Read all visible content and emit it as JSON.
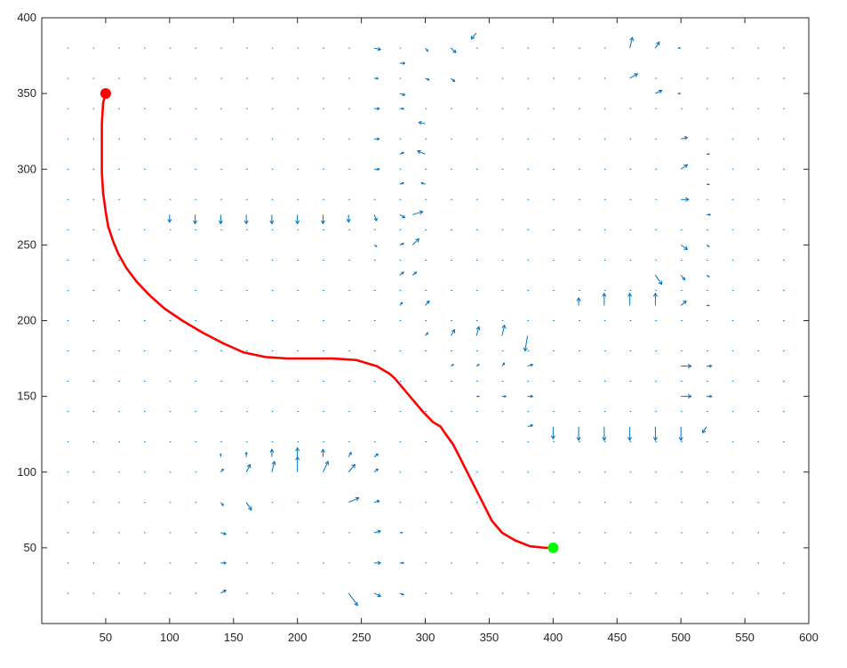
{
  "chart_data": {
    "type": "quiver",
    "title": "",
    "xlabel": "",
    "ylabel": "",
    "xlim": [
      0,
      600
    ],
    "ylim": [
      0,
      400
    ],
    "xticks": [
      50,
      100,
      150,
      200,
      250,
      300,
      350,
      400,
      450,
      500,
      550,
      600
    ],
    "yticks": [
      50,
      100,
      150,
      200,
      250,
      300,
      350,
      400
    ],
    "grid": false,
    "box": true,
    "vector_field": {
      "color": "#0072BD",
      "grid_x_start": 20,
      "grid_x_step": 20,
      "grid_y_start": 20,
      "grid_y_step": 20,
      "vectors": [
        [
          300,
          380,
          2,
          -2
        ],
        [
          320,
          380,
          4,
          -3
        ],
        [
          340,
          390,
          -4,
          -4
        ],
        [
          460,
          380,
          2,
          7
        ],
        [
          480,
          380,
          3,
          4
        ],
        [
          500,
          380,
          -2,
          0
        ],
        [
          260,
          380,
          5,
          -1
        ],
        [
          280,
          370,
          4,
          0
        ],
        [
          300,
          360,
          3,
          -1
        ],
        [
          320,
          360,
          3,
          -2
        ],
        [
          260,
          360,
          3,
          0
        ],
        [
          280,
          350,
          4,
          -1
        ],
        [
          460,
          360,
          6,
          3
        ],
        [
          480,
          350,
          5,
          2
        ],
        [
          500,
          350,
          -2,
          0
        ],
        [
          260,
          340,
          4,
          0
        ],
        [
          280,
          340,
          3,
          0
        ],
        [
          300,
          330,
          -5,
          1
        ],
        [
          260,
          320,
          4,
          0
        ],
        [
          280,
          310,
          3,
          1
        ],
        [
          300,
          310,
          -6,
          2
        ],
        [
          260,
          300,
          4,
          0
        ],
        [
          280,
          290,
          3,
          1
        ],
        [
          300,
          290,
          -3,
          1
        ],
        [
          500,
          320,
          5,
          1
        ],
        [
          520,
          310,
          2,
          0
        ],
        [
          500,
          300,
          5,
          3
        ],
        [
          520,
          290,
          2,
          0
        ],
        [
          500,
          280,
          6,
          0
        ],
        [
          520,
          270,
          3,
          0
        ],
        [
          100,
          270,
          0,
          -5
        ],
        [
          120,
          270,
          0,
          -6
        ],
        [
          140,
          270,
          0,
          -6
        ],
        [
          160,
          270,
          0,
          -6
        ],
        [
          180,
          270,
          0,
          -6
        ],
        [
          200,
          270,
          0,
          -6
        ],
        [
          220,
          270,
          0,
          -6
        ],
        [
          240,
          270,
          0,
          -5
        ],
        [
          260,
          270,
          2,
          -4
        ],
        [
          280,
          270,
          4,
          -2
        ],
        [
          290,
          270,
          8,
          2
        ],
        [
          80,
          250,
          0,
          0
        ],
        [
          100,
          250,
          0,
          0
        ],
        [
          120,
          250,
          0,
          0
        ],
        [
          140,
          250,
          0,
          0
        ],
        [
          160,
          250,
          0,
          0
        ],
        [
          180,
          250,
          0,
          0
        ],
        [
          200,
          250,
          0,
          0
        ],
        [
          220,
          250,
          0,
          0
        ],
        [
          240,
          250,
          0,
          0
        ],
        [
          260,
          250,
          2,
          -1
        ],
        [
          280,
          250,
          3,
          1
        ],
        [
          290,
          250,
          5,
          4
        ],
        [
          500,
          250,
          5,
          -3
        ],
        [
          520,
          250,
          2,
          -1
        ],
        [
          280,
          230,
          3,
          2
        ],
        [
          290,
          230,
          3,
          2
        ],
        [
          480,
          230,
          5,
          -6
        ],
        [
          500,
          230,
          3,
          -3
        ],
        [
          520,
          230,
          2,
          -1
        ],
        [
          280,
          210,
          2,
          2
        ],
        [
          300,
          210,
          3,
          3
        ],
        [
          420,
          210,
          0,
          5
        ],
        [
          440,
          210,
          0,
          8
        ],
        [
          460,
          210,
          0,
          8
        ],
        [
          480,
          210,
          0,
          8
        ],
        [
          500,
          210,
          4,
          3
        ],
        [
          520,
          210,
          2,
          0
        ],
        [
          300,
          190,
          2,
          2
        ],
        [
          320,
          190,
          3,
          4
        ],
        [
          340,
          190,
          2,
          6
        ],
        [
          360,
          190,
          2,
          7
        ],
        [
          380,
          190,
          -2,
          -10
        ],
        [
          320,
          170,
          2,
          1
        ],
        [
          340,
          170,
          2,
          1
        ],
        [
          360,
          170,
          2,
          2
        ],
        [
          380,
          170,
          4,
          1
        ],
        [
          500,
          170,
          8,
          0
        ],
        [
          520,
          170,
          4,
          0
        ],
        [
          340,
          150,
          2,
          0
        ],
        [
          360,
          150,
          3,
          0
        ],
        [
          380,
          150,
          4,
          0
        ],
        [
          500,
          150,
          8,
          0
        ],
        [
          520,
          150,
          4,
          0
        ],
        [
          380,
          130,
          4,
          1
        ],
        [
          400,
          130,
          0,
          -8
        ],
        [
          420,
          130,
          0,
          -9
        ],
        [
          440,
          130,
          0,
          -9
        ],
        [
          460,
          130,
          0,
          -9
        ],
        [
          480,
          130,
          0,
          -9
        ],
        [
          500,
          130,
          0,
          -9
        ],
        [
          520,
          130,
          -3,
          -4
        ],
        [
          140,
          110,
          0,
          2
        ],
        [
          160,
          110,
          0,
          3
        ],
        [
          180,
          110,
          0,
          5
        ],
        [
          200,
          110,
          0,
          6
        ],
        [
          220,
          110,
          0,
          5
        ],
        [
          240,
          110,
          2,
          3
        ],
        [
          260,
          110,
          3,
          2
        ],
        [
          140,
          100,
          2,
          2
        ],
        [
          160,
          100,
          3,
          5
        ],
        [
          180,
          100,
          2,
          7
        ],
        [
          200,
          100,
          0,
          10
        ],
        [
          220,
          100,
          4,
          7
        ],
        [
          240,
          100,
          5,
          5
        ],
        [
          260,
          100,
          3,
          2
        ],
        [
          140,
          80,
          2,
          -2
        ],
        [
          160,
          80,
          4,
          -5
        ],
        [
          240,
          80,
          8,
          3
        ],
        [
          260,
          80,
          4,
          1
        ],
        [
          140,
          60,
          4,
          -1
        ],
        [
          260,
          60,
          5,
          1
        ],
        [
          280,
          60,
          2,
          0
        ],
        [
          140,
          40,
          4,
          0
        ],
        [
          260,
          40,
          5,
          0
        ],
        [
          280,
          40,
          3,
          0
        ],
        [
          140,
          20,
          4,
          2
        ],
        [
          240,
          20,
          7,
          -8
        ],
        [
          260,
          20,
          5,
          -2
        ],
        [
          280,
          20,
          3,
          -1
        ]
      ]
    },
    "series": [
      {
        "color": "#ff0000",
        "x": [
          50,
          48,
          47,
          47,
          47,
          48,
          50,
          52,
          56,
          60,
          66,
          74,
          84,
          96,
          110,
          126,
          142,
          158,
          175,
          192,
          210,
          228,
          246,
          262,
          272,
          276,
          282,
          290,
          298,
          306,
          312,
          316,
          322,
          328,
          334,
          340,
          346,
          352,
          360,
          370,
          382,
          394,
          400
        ],
        "y": [
          350,
          344,
          330,
          314,
          298,
          284,
          272,
          262,
          252,
          244,
          235,
          226,
          217,
          208,
          200,
          192,
          185,
          179,
          176,
          175,
          175,
          175,
          174,
          170,
          165,
          162,
          156,
          148,
          140,
          133,
          130,
          125,
          118,
          108,
          98,
          88,
          78,
          68,
          60,
          55,
          51,
          50,
          50
        ]
      }
    ],
    "markers": [
      {
        "name": "start",
        "x": 50,
        "y": 350,
        "color": "#ff0000"
      },
      {
        "name": "goal",
        "x": 400,
        "y": 50,
        "color": "#00ff00"
      }
    ]
  }
}
